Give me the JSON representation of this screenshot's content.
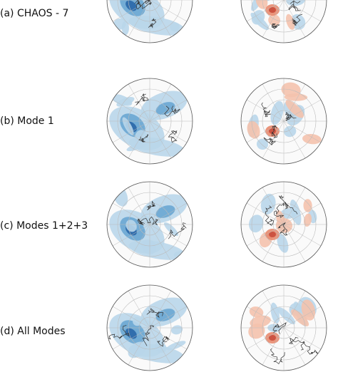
{
  "colors": {
    "blue_light": "#b9d6ea",
    "blue_mid": "#6aa6d3",
    "blue_dark": "#2a67a8",
    "red_light": "#f4c2ad",
    "red_mid": "#e88a6e",
    "red_dark": "#c94b3b",
    "coast": "#333333",
    "grid": "#bbbbbb"
  },
  "rows": [
    {
      "label": "(a) CHAOS - 7"
    },
    {
      "label": "(b) Mode 1"
    },
    {
      "label": "(c) Modes 1+2+3"
    },
    {
      "label": "(d) All Modes"
    }
  ],
  "columns": [
    {
      "panel_kind": "blue-field"
    },
    {
      "panel_kind": "diverging-field"
    }
  ]
}
